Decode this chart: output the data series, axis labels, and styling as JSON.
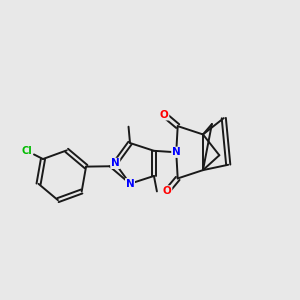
{
  "background_color": "#e8e8e8",
  "bond_color": "#1a1a1a",
  "N_color": "#0000ff",
  "O_color": "#ff0000",
  "Cl_color": "#00bb00",
  "figsize": [
    3.0,
    3.0
  ],
  "dpi": 100,
  "xlim": [
    0,
    10
  ],
  "ylim": [
    0,
    10
  ]
}
